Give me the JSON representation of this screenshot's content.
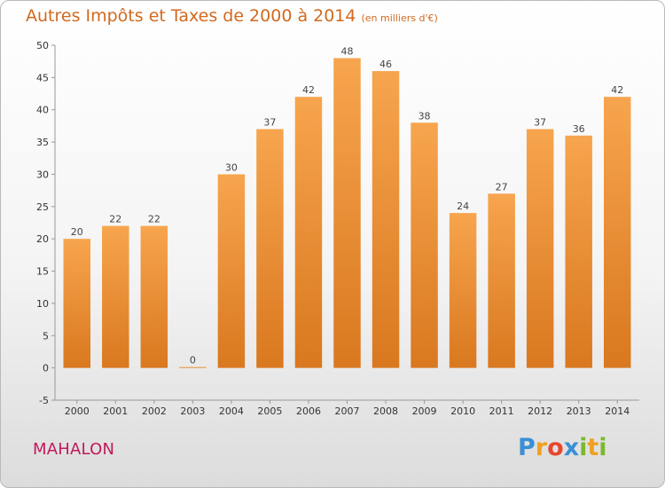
{
  "title": "Autres Impôts et Taxes de 2000 à 2014",
  "unit": "(en milliers d'€)",
  "commune": "MAHALON",
  "logo": {
    "letters": [
      {
        "ch": "P",
        "color": "#3a8fd6"
      },
      {
        "ch": "r",
        "color": "#f0a020"
      },
      {
        "ch": "o",
        "color": "#e8462e"
      },
      {
        "ch": "x",
        "color": "#3a8fd6"
      },
      {
        "ch": "i",
        "color": "#7cb82f"
      },
      {
        "ch": "t",
        "color": "#f0a020"
      },
      {
        "ch": "i",
        "color": "#7cb82f"
      }
    ]
  },
  "chart_data": {
    "type": "bar",
    "categories": [
      "2000",
      "2001",
      "2002",
      "2003",
      "2004",
      "2005",
      "2006",
      "2007",
      "2008",
      "2009",
      "2010",
      "2011",
      "2012",
      "2013",
      "2014"
    ],
    "values": [
      20,
      22,
      22,
      0,
      30,
      37,
      42,
      48,
      46,
      38,
      24,
      27,
      37,
      36,
      42
    ],
    "ylim": [
      -5,
      50
    ],
    "yticks": [
      -5,
      0,
      5,
      10,
      15,
      20,
      25,
      30,
      35,
      40,
      45,
      50
    ],
    "grid": false,
    "bar_color_top": "#f7a54e",
    "bar_color_bottom": "#d9781f"
  }
}
